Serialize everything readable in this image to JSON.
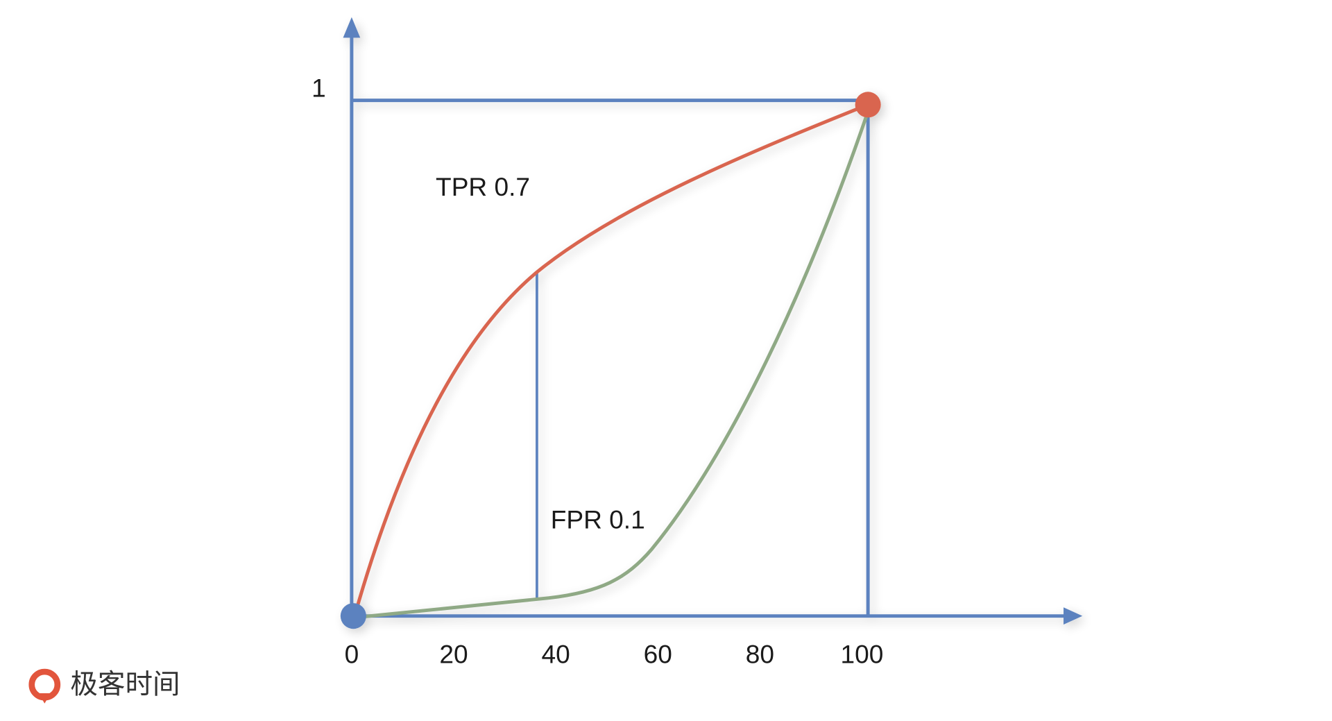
{
  "x_axis": {
    "ticks": [
      0,
      20,
      40,
      60,
      80,
      100
    ]
  },
  "y_axis": {
    "ticks": [
      1
    ]
  },
  "annotations": [
    "TPR 0.7",
    "FPR 0.1"
  ],
  "watermark": "极客时间"
}
